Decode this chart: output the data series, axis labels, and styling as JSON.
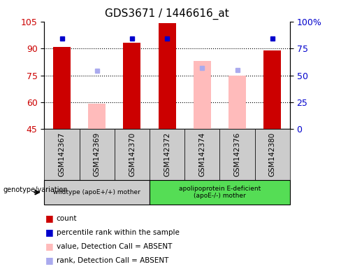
{
  "title": "GDS3671 / 1446616_at",
  "samples": [
    "GSM142367",
    "GSM142369",
    "GSM142370",
    "GSM142372",
    "GSM142374",
    "GSM142376",
    "GSM142380"
  ],
  "count_values": [
    91,
    null,
    93,
    104,
    null,
    null,
    89
  ],
  "count_absent_values": [
    null,
    59,
    null,
    null,
    83,
    75,
    null
  ],
  "percentile_present": [
    84,
    null,
    84,
    84,
    null,
    null,
    84
  ],
  "percentile_absent": [
    null,
    54,
    null,
    null,
    57,
    55,
    null
  ],
  "group1_indices": [
    0,
    1,
    2
  ],
  "group2_indices": [
    3,
    4,
    5,
    6
  ],
  "group1_label": "wildtype (apoE+/+) mother",
  "group2_label": "apolipoprotein E-deficient\n(apoE-/-) mother",
  "genotype_label": "genotype/variation",
  "ylim_left": [
    45,
    105
  ],
  "ylim_right": [
    0,
    100
  ],
  "yticks_left": [
    45,
    60,
    75,
    90,
    105
  ],
  "yticks_right": [
    0,
    25,
    50,
    75,
    100
  ],
  "ytick_labels_right": [
    "0",
    "25",
    "50",
    "75",
    "100%"
  ],
  "color_count": "#cc0000",
  "color_count_absent": "#ffbbbb",
  "color_percentile_present": "#0000cc",
  "color_percentile_absent": "#aaaaee",
  "bar_width": 0.5,
  "bg_color": "#ffffff",
  "legend_items": [
    {
      "label": "count",
      "color": "#cc0000"
    },
    {
      "label": "percentile rank within the sample",
      "color": "#0000cc"
    },
    {
      "label": "value, Detection Call = ABSENT",
      "color": "#ffbbbb"
    },
    {
      "label": "rank, Detection Call = ABSENT",
      "color": "#aaaaee"
    }
  ],
  "grid_dotted_at": [
    60,
    75,
    90
  ],
  "group1_bg": "#cccccc",
  "group2_bg": "#55dd55",
  "ticklabel_bg": "#cccccc"
}
